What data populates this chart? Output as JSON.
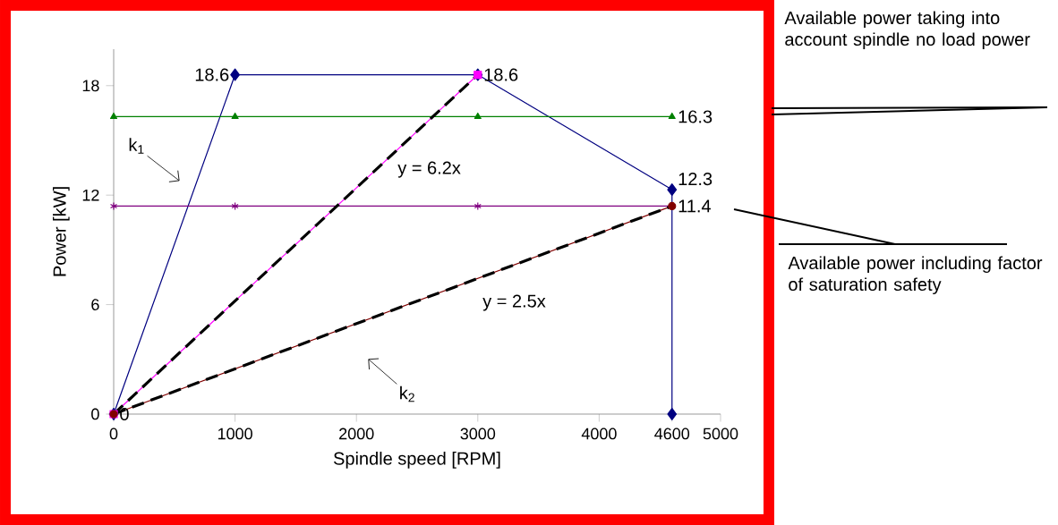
{
  "chart_data": {
    "type": "line",
    "xlabel": "Spindle speed [RPM]",
    "ylabel": "Power [kW]",
    "xlim": [
      0,
      5000
    ],
    "ylim": [
      0,
      20
    ],
    "xticks": [
      0,
      1000,
      2000,
      3000,
      4000,
      4600,
      5000
    ],
    "yticks": [
      0,
      6,
      12,
      18
    ],
    "grid": false,
    "series": [
      {
        "color": "#000080",
        "marker": "diamond",
        "x": [
          0,
          1000,
          3000,
          4600,
          4600
        ],
        "values": [
          0,
          18.6,
          18.6,
          12.3,
          0
        ],
        "value_labels": [
          "0",
          "18.6",
          null,
          "12.3",
          null
        ]
      },
      {
        "color": "#008000",
        "marker": "triangle",
        "x": [
          0,
          1000,
          3000,
          4600
        ],
        "values": [
          16.3,
          16.3,
          16.3,
          16.3
        ],
        "value_labels": [
          null,
          null,
          null,
          "16.3"
        ]
      },
      {
        "color": "#800080",
        "marker": "cross",
        "x": [
          0,
          1000,
          3000,
          4600
        ],
        "values": [
          11.4,
          11.4,
          11.4,
          11.4
        ],
        "value_labels": [
          null,
          null,
          null,
          "11.4"
        ]
      },
      {
        "color": "#ff00ff",
        "marker": "square",
        "x": [
          0,
          3000
        ],
        "values": [
          0,
          18.6
        ],
        "value_labels": [
          null,
          "18.6"
        ]
      },
      {
        "color": "#800000",
        "marker": "circle",
        "x": [
          0,
          4600
        ],
        "values": [
          0,
          11.4
        ]
      },
      {
        "color": "#000000",
        "marker": "none",
        "line_style": "dashed",
        "x": [
          0,
          3000
        ],
        "values": [
          0,
          18.6
        ]
      },
      {
        "color": "#000000",
        "marker": "none",
        "line_style": "dashed",
        "x": [
          0,
          4600
        ],
        "values": [
          0,
          11.4
        ]
      }
    ],
    "annotations": [
      "k$_{1}$",
      "k$_{2}$",
      "y = 6.2x",
      "y = 2.5x",
      "Available power taking into account spindle no load power",
      "Available power including factor of saturation safety"
    ]
  }
}
